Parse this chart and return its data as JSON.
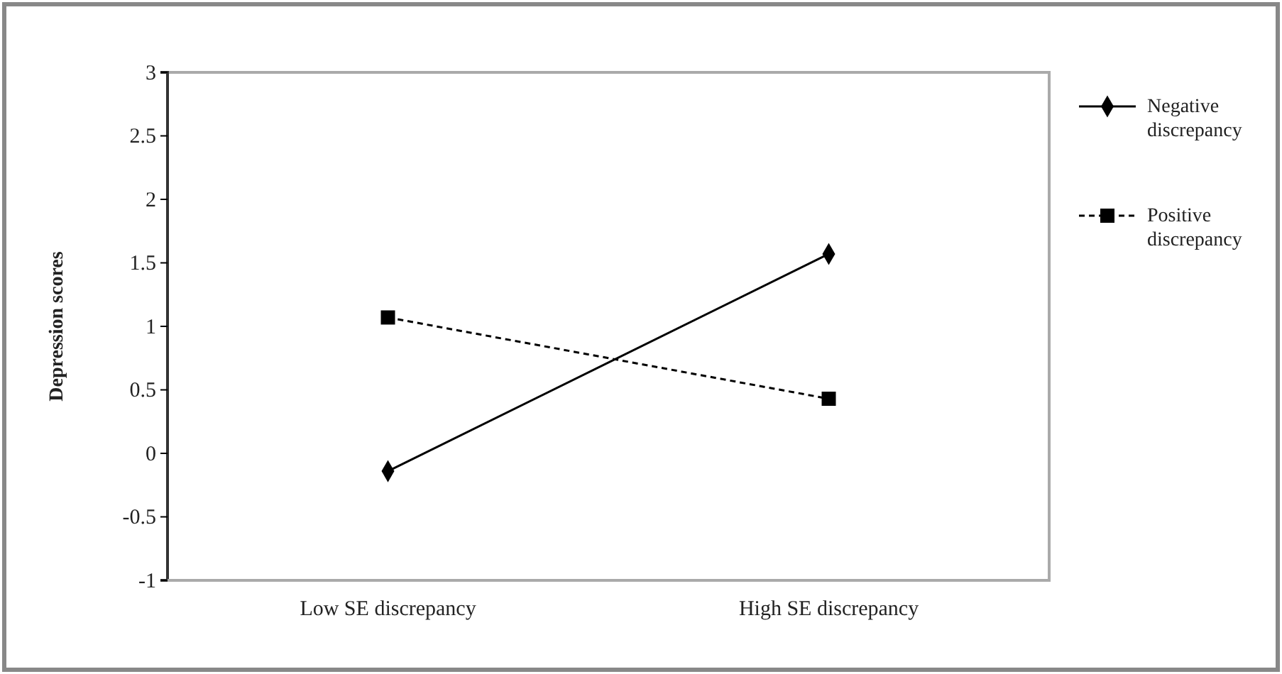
{
  "chart_data": {
    "type": "line",
    "ylabel": "Depression scores",
    "categories": [
      "Low SE discrepancy",
      "High SE discrepancy"
    ],
    "series": [
      {
        "name": "Negative discrepancy",
        "color": "#000000",
        "values": [
          -0.14,
          1.57
        ],
        "marker": "diamond",
        "line_style": "solid"
      },
      {
        "name": "Positive discrepancy",
        "color": "#000000",
        "values": [
          1.07,
          0.43
        ],
        "marker": "square",
        "line_style": "dashed"
      }
    ],
    "ylim": [
      -1,
      3
    ],
    "yticks": [
      -1,
      -0.5,
      0,
      0.5,
      1,
      1.5,
      2,
      2.5,
      3
    ],
    "grid": false,
    "legend": "right"
  }
}
